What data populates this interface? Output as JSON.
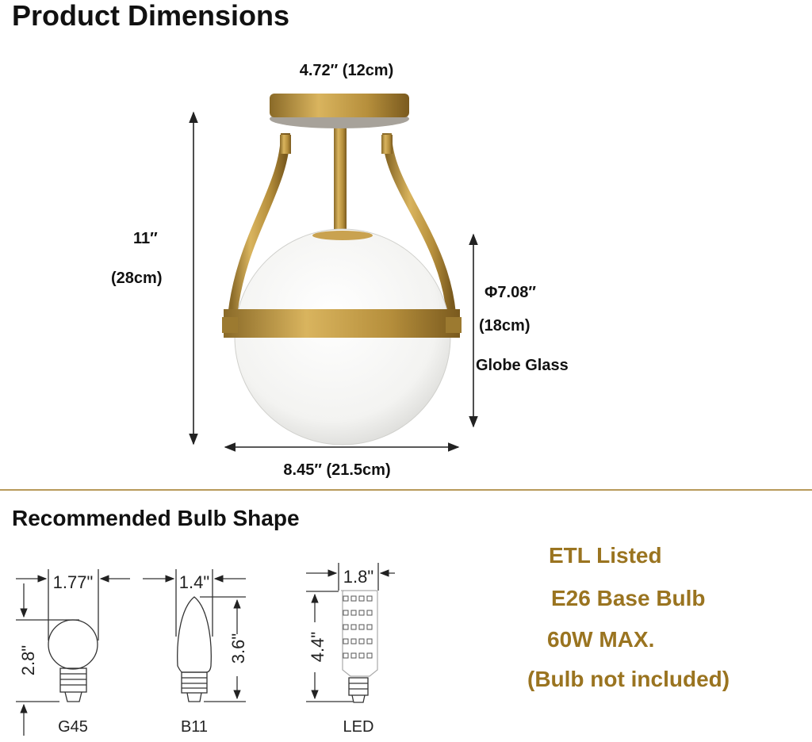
{
  "title": "Product Dimensions",
  "dimensions": {
    "canopy_width": "4.72″  (12cm)",
    "height_in": "11″",
    "height_cm": "(28cm)",
    "globe_diameter": "Φ7.08″",
    "globe_cm": "(18cm)",
    "globe_label": "Globe Glass",
    "total_width": "8.45″  (21.5cm)"
  },
  "bulb_section": {
    "title": "Recommended Bulb Shape",
    "bulbs": [
      {
        "name": "G45",
        "width": "1.77\"",
        "height": "2.8\""
      },
      {
        "name": "B11",
        "width": "1.4\"",
        "height": "3.6\""
      },
      {
        "name": "LED",
        "width": "1.8\"",
        "height": "4.4\""
      }
    ]
  },
  "specs": [
    "ETL Listed",
    "E26 Base Bulb",
    "60W MAX.",
    "(Bulb not included)"
  ],
  "colors": {
    "accent_gold": "#9a7420",
    "brass": "#b8923e",
    "divider": "#b89a5a"
  }
}
